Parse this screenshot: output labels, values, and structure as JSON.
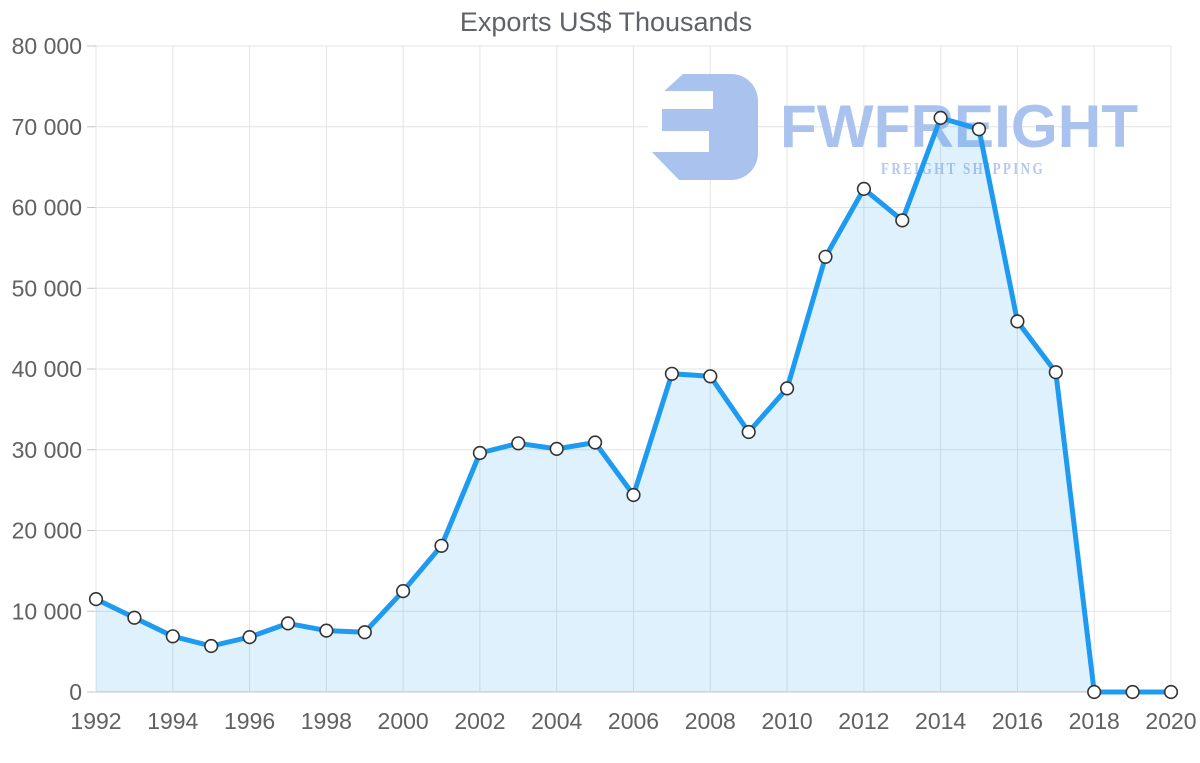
{
  "chart_data": {
    "type": "area",
    "title": "Exports US$ Thousands",
    "x": [
      1992,
      1993,
      1994,
      1995,
      1996,
      1997,
      1998,
      1999,
      2000,
      2001,
      2002,
      2003,
      2004,
      2005,
      2006,
      2007,
      2008,
      2009,
      2010,
      2011,
      2012,
      2013,
      2014,
      2015,
      2016,
      2017,
      2018,
      2019,
      2020
    ],
    "values": [
      11500,
      9200,
      6900,
      5700,
      6800,
      8500,
      7600,
      7400,
      12500,
      18100,
      29600,
      30800,
      30100,
      30900,
      24400,
      39400,
      39100,
      32200,
      37600,
      53900,
      62300,
      58400,
      71100,
      69700,
      45900,
      39600,
      0,
      0,
      0
    ],
    "xlabel": "",
    "ylabel": "",
    "ylim": [
      0,
      80000
    ],
    "ytick_step": 10000,
    "ytick_labels": [
      "0",
      "10 000",
      "20 000",
      "30 000",
      "40 000",
      "50 000",
      "60 000",
      "70 000",
      "80 000"
    ],
    "xtick_labels": [
      "1992",
      "1994",
      "1996",
      "1998",
      "2000",
      "2002",
      "2004",
      "2006",
      "2008",
      "2010",
      "2012",
      "2014",
      "2016",
      "2018",
      "2020"
    ],
    "grid": true,
    "legend": "none",
    "line_color": "#1e9bf0",
    "fill_color": "#1e9bf0",
    "fill_opacity": 0.14,
    "marker_fill": "#ffffff",
    "marker_stroke": "#333333",
    "gridline_color": "#e4e4e4",
    "axisline_color": "#c6c6c6",
    "label_color": "#616161",
    "title_color": "#5f6368"
  },
  "watermark": {
    "brand": "FWFREIGHT",
    "tagline": "FREIGHT SHIPPING",
    "color": "#aac3ee",
    "tagline_color": "#b4c8f0"
  }
}
